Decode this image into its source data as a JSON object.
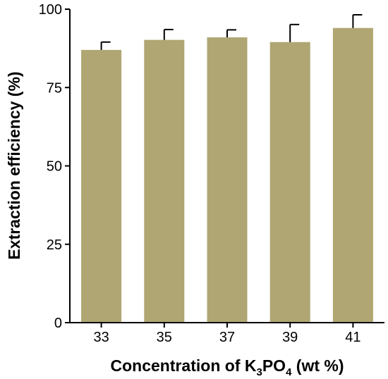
{
  "chart_data": {
    "type": "bar",
    "categories": [
      "33",
      "35",
      "37",
      "39",
      "41"
    ],
    "values": [
      87.0,
      90.2,
      91.0,
      89.5,
      94.0
    ],
    "errors": [
      2.5,
      3.3,
      2.4,
      5.6,
      4.2
    ],
    "ylabel": "Extraction efficiency (%)",
    "xlabel": {
      "prefix": "Concentration of K",
      "sub1": "3",
      "middle": "PO",
      "sub2": "4",
      "suffix": " (wt %)"
    },
    "ylim": [
      0,
      100
    ],
    "yticks": [
      0,
      25,
      50,
      75,
      100
    ],
    "bar_color": "#b0a673",
    "grid": false
  }
}
